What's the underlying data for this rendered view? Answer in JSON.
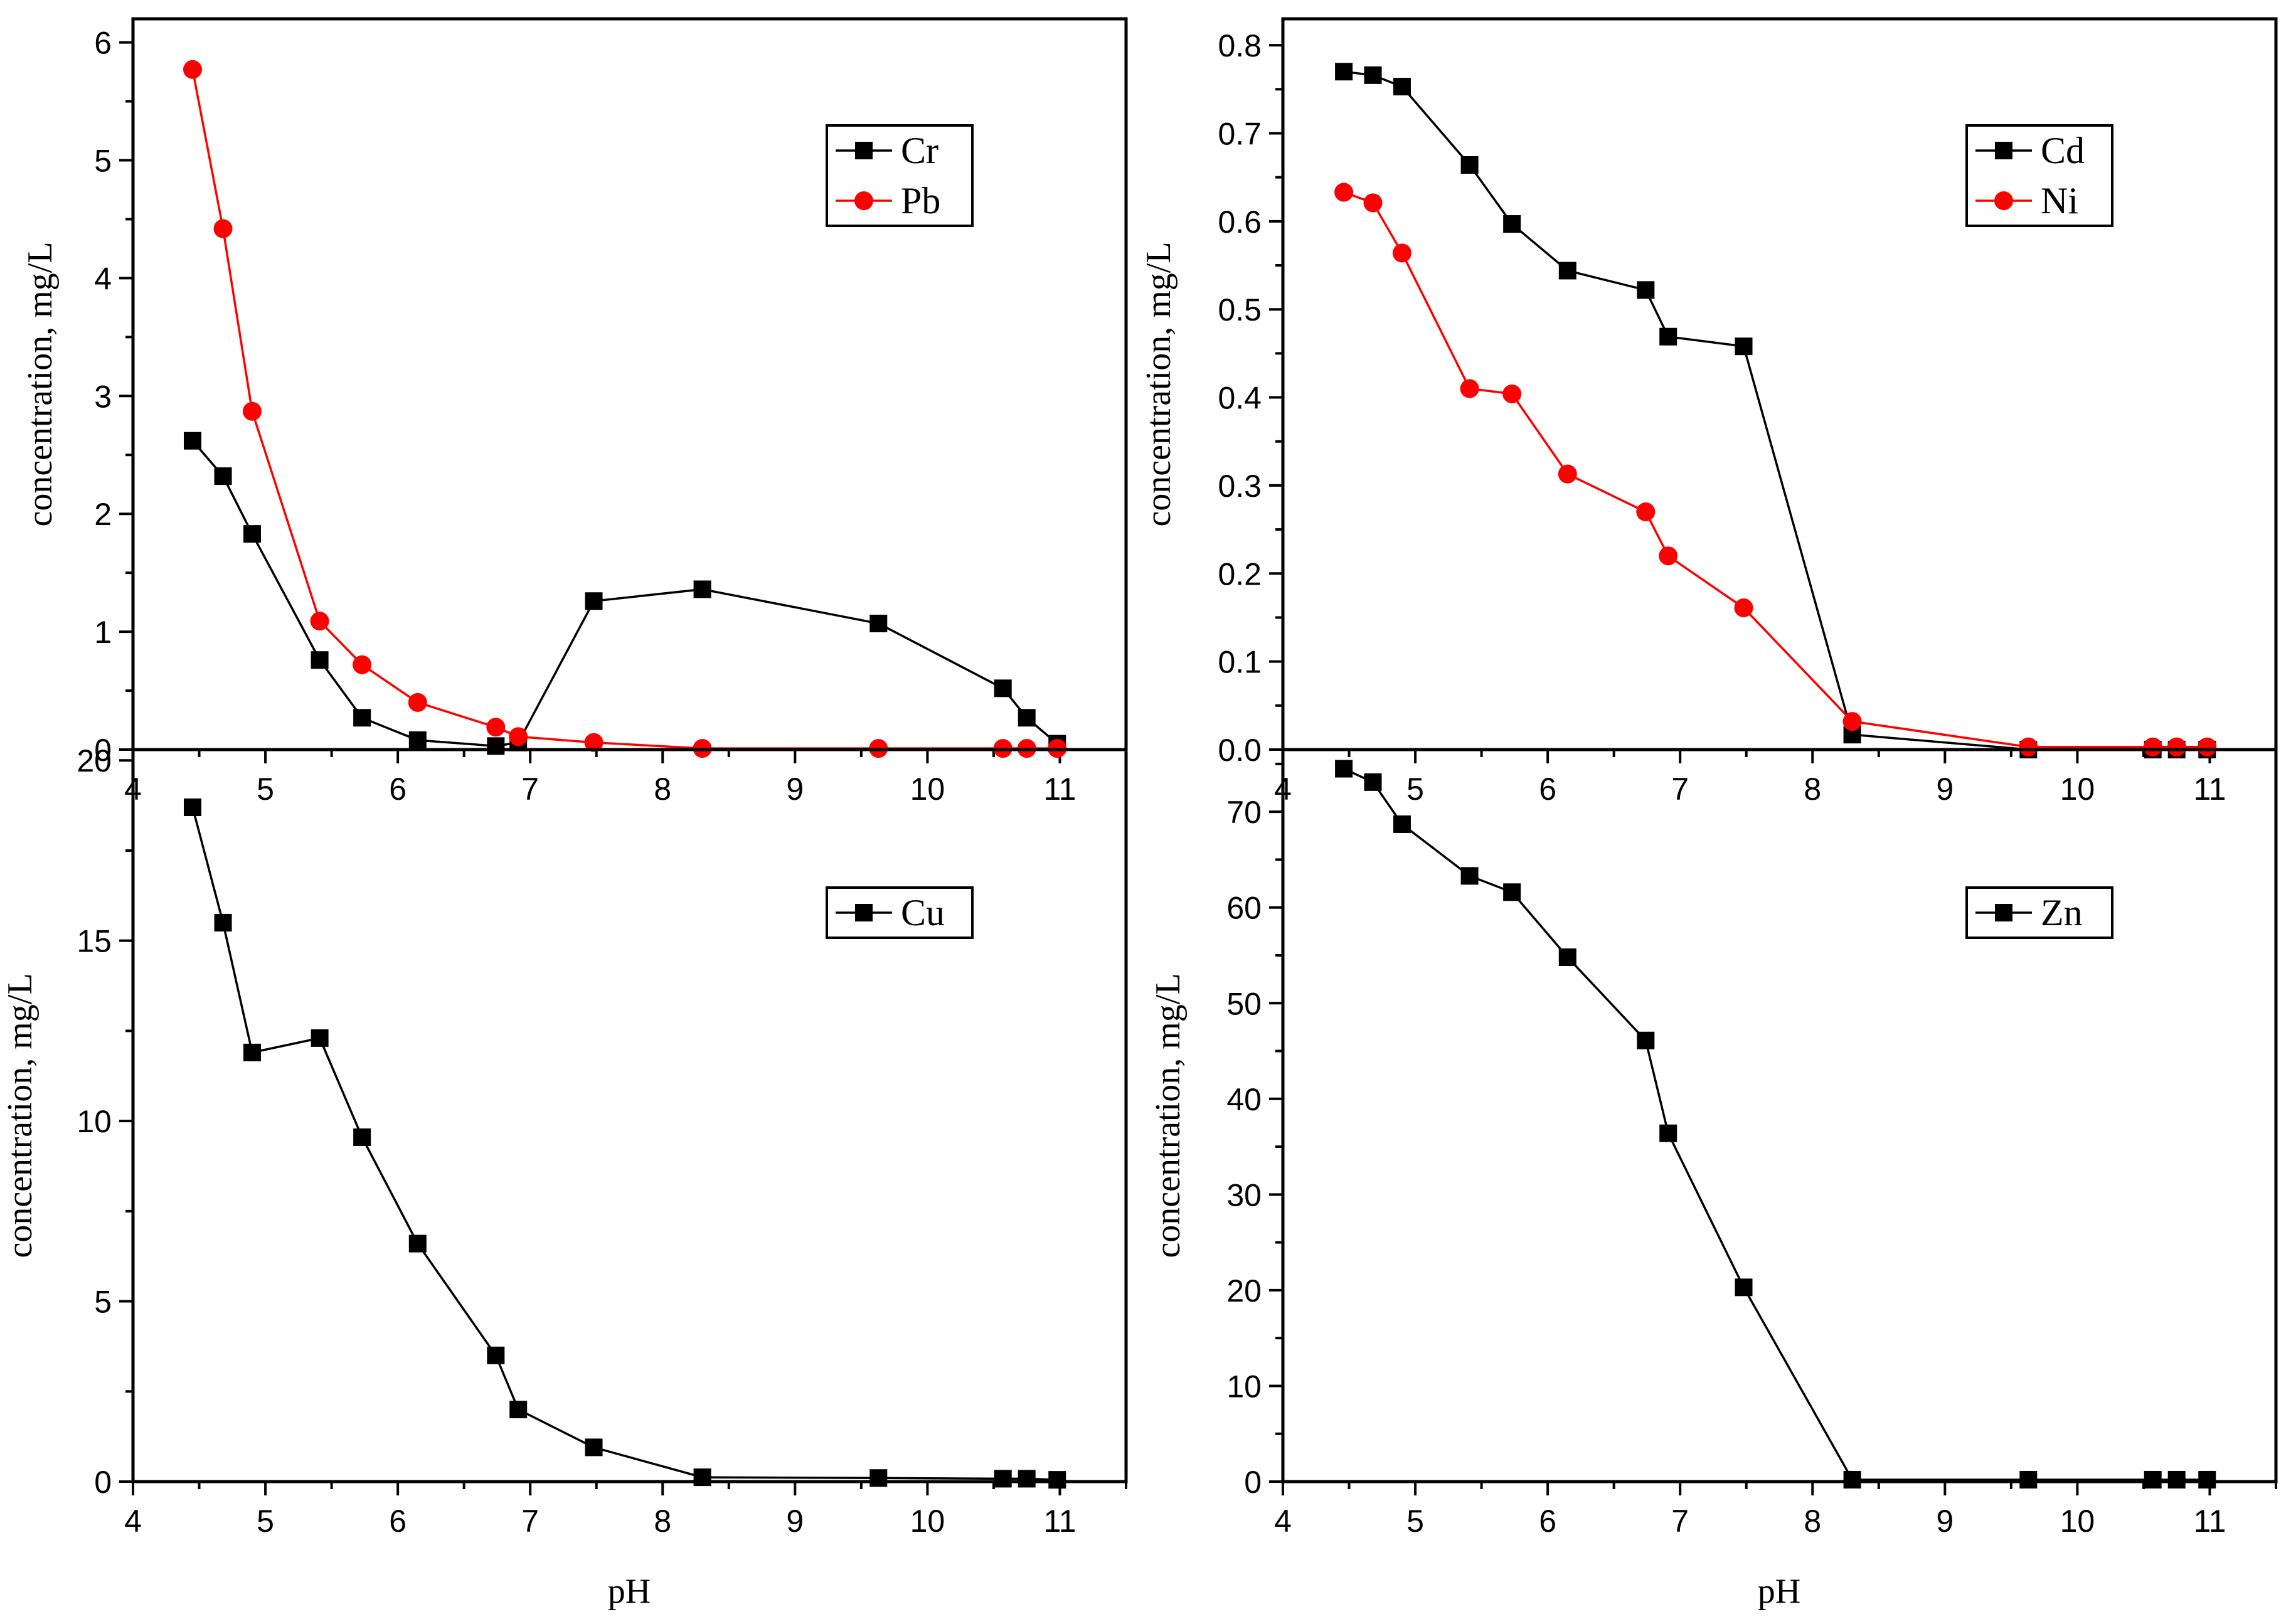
{
  "figure_colors": {
    "black": "#000000",
    "red": "#ff0000"
  },
  "chart_data": [
    {
      "id": "cr_pb",
      "type": "line",
      "xlabel": "",
      "ylabel": "concentration, mg/L",
      "xlim": [
        4,
        11.5
      ],
      "ylim": [
        0,
        6.2
      ],
      "xticks": [
        4,
        5,
        6,
        7,
        8,
        9,
        10,
        11
      ],
      "xtick_labels": [
        "4",
        "5",
        "6",
        "7",
        "8",
        "9",
        "10",
        "11"
      ],
      "yticks": [
        0,
        1,
        2,
        3,
        4,
        5,
        6
      ],
      "ytick_labels": [
        "0",
        "1",
        "2",
        "3",
        "4",
        "5",
        "6"
      ],
      "legend_position": "top-right",
      "x": [
        4.45,
        4.68,
        4.9,
        5.41,
        5.73,
        6.15,
        6.74,
        6.91,
        7.48,
        8.3,
        9.63,
        10.57,
        10.75,
        10.98
      ],
      "series": [
        {
          "name": "Cr",
          "color": "#000000",
          "marker": "square",
          "values": [
            2.62,
            2.32,
            1.83,
            0.76,
            0.27,
            0.08,
            0.03,
            0.06,
            1.26,
            1.36,
            1.07,
            0.52,
            0.27,
            0.05
          ]
        },
        {
          "name": "Pb",
          "color": "#ff0000",
          "marker": "circle",
          "values": [
            5.77,
            4.42,
            2.87,
            1.09,
            0.72,
            0.4,
            0.19,
            0.11,
            0.06,
            0.01,
            0.01,
            0.01,
            0.01,
            0.01
          ]
        }
      ]
    },
    {
      "id": "cd_ni",
      "type": "line",
      "xlabel": "",
      "ylabel": "concentration, mg/L",
      "xlim": [
        4,
        11.5
      ],
      "ylim": [
        0,
        0.83
      ],
      "xticks": [
        4,
        5,
        6,
        7,
        8,
        9,
        10,
        11
      ],
      "xtick_labels": [
        "4",
        "5",
        "6",
        "7",
        "8",
        "9",
        "10",
        "11"
      ],
      "yticks": [
        0,
        0.1,
        0.2,
        0.3,
        0.4,
        0.5,
        0.6,
        0.7,
        0.8
      ],
      "ytick_labels": [
        "0.0",
        "0.1",
        "0.2",
        "0.3",
        "0.4",
        "0.5",
        "0.6",
        "0.7",
        "0.8"
      ],
      "legend_position": "top-right",
      "x": [
        4.46,
        4.68,
        4.9,
        5.41,
        5.73,
        6.15,
        6.74,
        6.91,
        7.48,
        8.3,
        9.63,
        10.57,
        10.75,
        10.98
      ],
      "series": [
        {
          "name": "Cd",
          "color": "#000000",
          "marker": "square",
          "values": [
            0.77,
            0.766,
            0.753,
            0.664,
            0.597,
            0.544,
            0.522,
            0.469,
            0.458,
            0.017,
            0.0,
            0.0,
            0.0,
            0.0
          ]
        },
        {
          "name": "Ni",
          "color": "#ff0000",
          "marker": "circle",
          "values": [
            0.633,
            0.621,
            0.564,
            0.41,
            0.404,
            0.313,
            0.27,
            0.22,
            0.161,
            0.032,
            0.003,
            0.003,
            0.003,
            0.003
          ]
        }
      ]
    },
    {
      "id": "cu",
      "type": "line",
      "xlabel": "pH",
      "ylabel": "concentration, mg/L",
      "xlim": [
        4,
        11.5
      ],
      "ylim": [
        0,
        20.3
      ],
      "xticks": [
        4,
        5,
        6,
        7,
        8,
        9,
        10,
        11
      ],
      "xtick_labels": [
        "4",
        "5",
        "6",
        "7",
        "8",
        "9",
        "10",
        "11"
      ],
      "yticks": [
        0,
        5,
        10,
        15,
        20
      ],
      "ytick_labels": [
        "0",
        "5",
        "10",
        "15",
        "20"
      ],
      "legend_position": "top-right",
      "x": [
        4.45,
        4.68,
        4.9,
        5.41,
        5.73,
        6.15,
        6.74,
        6.91,
        7.48,
        8.3,
        9.63,
        10.57,
        10.75,
        10.98
      ],
      "series": [
        {
          "name": "Cu",
          "color": "#000000",
          "marker": "square",
          "values": [
            18.7,
            15.5,
            11.9,
            12.3,
            9.55,
            6.6,
            3.5,
            2.0,
            0.95,
            0.12,
            0.1,
            0.08,
            0.08,
            0.05
          ]
        }
      ]
    },
    {
      "id": "zn",
      "type": "line",
      "xlabel": "pH",
      "ylabel": "concentration, mg/L",
      "xlim": [
        4,
        11.5
      ],
      "ylim": [
        0,
        76.5
      ],
      "xticks": [
        4,
        5,
        6,
        7,
        8,
        9,
        10,
        11
      ],
      "xtick_labels": [
        "4",
        "5",
        "6",
        "7",
        "8",
        "9",
        "10",
        "11"
      ],
      "yticks": [
        0,
        10,
        20,
        30,
        40,
        50,
        60,
        70
      ],
      "ytick_labels": [
        "0",
        "10",
        "20",
        "30",
        "40",
        "50",
        "60",
        "70"
      ],
      "legend_position": "top-right",
      "x": [
        4.46,
        4.68,
        4.9,
        5.41,
        5.73,
        6.15,
        6.74,
        6.91,
        7.48,
        8.3,
        9.63,
        10.57,
        10.75,
        10.98
      ],
      "series": [
        {
          "name": "Zn",
          "color": "#000000",
          "marker": "square",
          "values": [
            74.5,
            73.1,
            68.7,
            63.3,
            61.6,
            54.8,
            46.1,
            36.4,
            20.3,
            0.2,
            0.2,
            0.2,
            0.2,
            0.2
          ]
        }
      ]
    }
  ]
}
